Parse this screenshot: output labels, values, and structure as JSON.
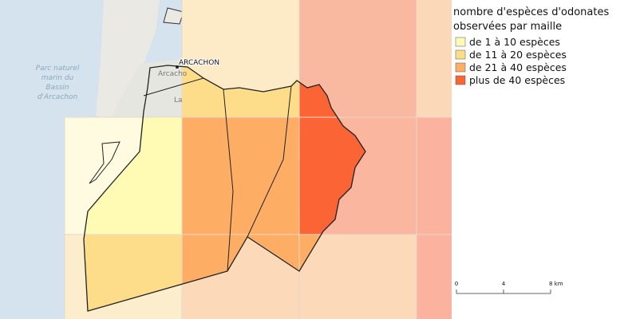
{
  "map": {
    "labels": {
      "town": "ARCACHON",
      "town_small": "Arcacho",
      "town_fragment": "La",
      "park": [
        "Parc naturel",
        "marin du",
        "Bassin",
        "d'Arcachon"
      ]
    },
    "legend": {
      "title": [
        "nombre d'espèces d'odonates",
        "observées par maille"
      ],
      "items": [
        {
          "label": "de 1 à 10 espèces",
          "color": "#fffbb4"
        },
        {
          "label": "de 11 à 20 espèces",
          "color": "#fddc8a"
        },
        {
          "label": "de 21 à 40 espèces",
          "color": "#fdae64"
        },
        {
          "label": "plus de 40 espèces",
          "color": "#fb6434"
        }
      ]
    },
    "scale": {
      "labels": [
        "0",
        "4",
        "8 km"
      ]
    }
  }
}
